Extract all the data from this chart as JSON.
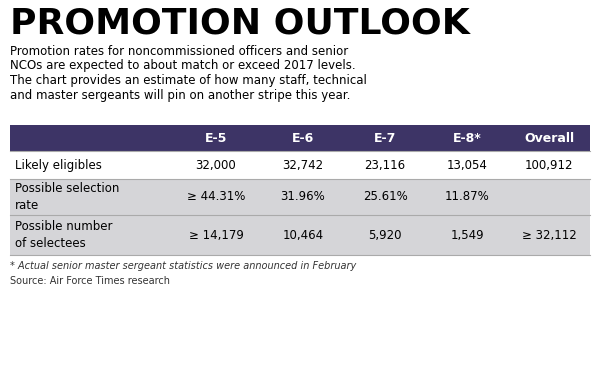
{
  "title": "PROMOTION OUTLOOK",
  "subtitle_lines": [
    "Promotion rates for noncommissioned officers and senior",
    "NCOs are expected to about match or exceed 2017 levels.",
    "The chart provides an estimate of how many staff, technical",
    "and master sergeants will pin on another stripe this year."
  ],
  "header_bg": "#3d3466",
  "header_text_color": "#ffffff",
  "col_headers": [
    "",
    "E-5",
    "E-6",
    "E-7",
    "E-8*",
    "Overall"
  ],
  "rows": [
    {
      "label": "Likely eligibles",
      "values": [
        "32,000",
        "32,742",
        "23,116",
        "13,054",
        "100,912"
      ],
      "bg": "#ffffff"
    },
    {
      "label": "Possible selection\nrate",
      "values": [
        "≥ 44.31%",
        "31.96%",
        "25.61%",
        "11.87%",
        ""
      ],
      "bg": "#d5d5d8"
    },
    {
      "label": "Possible number\nof selectees",
      "values": [
        "≥ 14,179",
        "10,464",
        "5,920",
        "1,549",
        "≥ 32,112"
      ],
      "bg": "#d5d5d8"
    }
  ],
  "footnote1": "* Actual senior master sergeant statistics were announced in February",
  "footnote2": "Source: Air Force Times research",
  "bg_color": "#ffffff",
  "title_color": "#000000",
  "subtitle_color": "#000000",
  "table_text_color": "#000000",
  "divider_color": "#aaaaaa"
}
